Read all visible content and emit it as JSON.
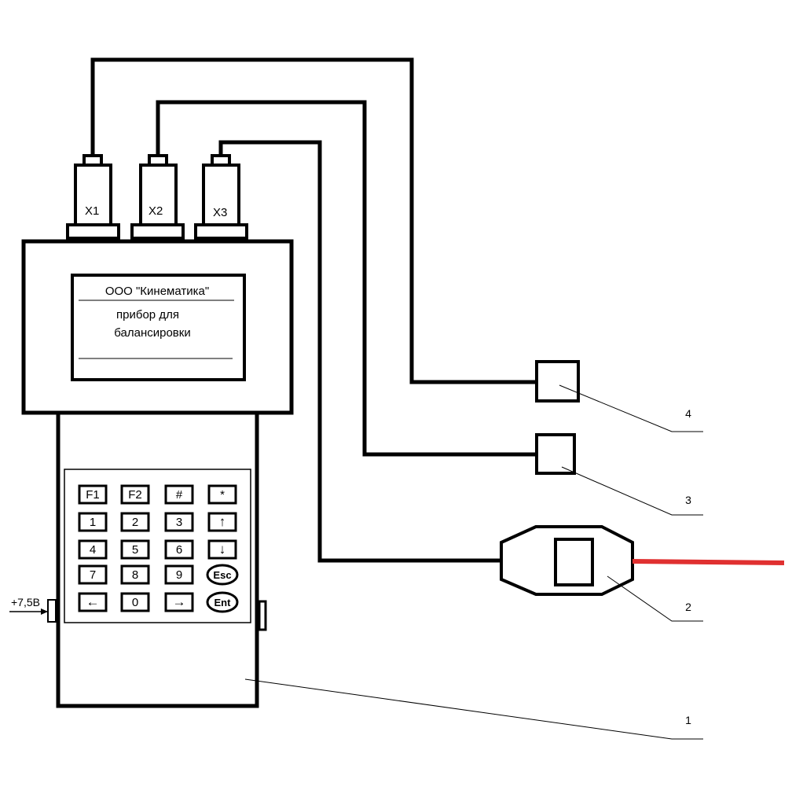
{
  "connectors": [
    {
      "label": "X1"
    },
    {
      "label": "X2"
    },
    {
      "label": "X3"
    }
  ],
  "display": {
    "line1": "ООО \"Кинематика\"",
    "line2": "прибор для",
    "line3": "балансировки"
  },
  "keypad": {
    "rows": [
      [
        "F1",
        "F2",
        "#",
        "*"
      ],
      [
        "1",
        "2",
        "3",
        "↑"
      ],
      [
        "4",
        "5",
        "6",
        "↓"
      ],
      [
        "7",
        "8",
        "9",
        "Esc"
      ],
      [
        "←",
        "0",
        "→",
        "Ent"
      ]
    ]
  },
  "power_label": "+7,5В",
  "callouts": {
    "device": "1",
    "laser_sensor": "2",
    "sensor_3": "3",
    "sensor_4": "4"
  },
  "colors": {
    "line": "#000000",
    "laser_beam": "#e03030",
    "background": "#ffffff"
  }
}
